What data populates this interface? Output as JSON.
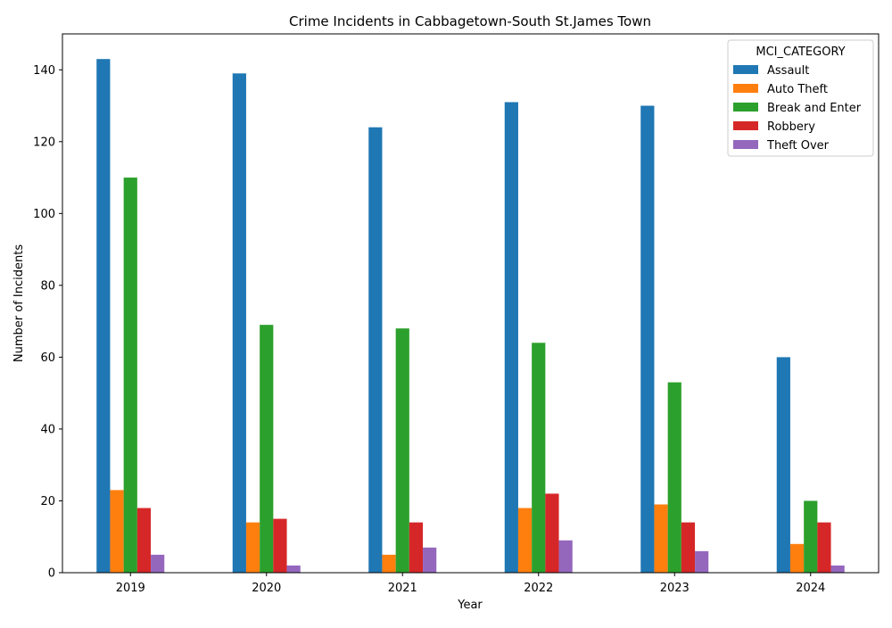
{
  "chart_data": {
    "type": "bar",
    "title": "Crime Incidents in Cabbagetown-South St.James Town",
    "xlabel": "Year",
    "ylabel": "Number of Incidents",
    "categories": [
      "2019",
      "2020",
      "2021",
      "2022",
      "2023",
      "2024"
    ],
    "ylim": [
      0,
      150
    ],
    "yticks": [
      0,
      20,
      40,
      60,
      80,
      100,
      120,
      140
    ],
    "legend_title": "MCI_CATEGORY",
    "legend_position": "top-right",
    "grid": false,
    "series": [
      {
        "name": "Assault",
        "color": "#1f77b4",
        "values": [
          143,
          139,
          124,
          131,
          130,
          60
        ]
      },
      {
        "name": "Auto Theft",
        "color": "#ff7f0e",
        "values": [
          23,
          14,
          5,
          18,
          19,
          8
        ]
      },
      {
        "name": "Break and Enter",
        "color": "#2ca02c",
        "values": [
          110,
          69,
          68,
          64,
          53,
          20
        ]
      },
      {
        "name": "Robbery",
        "color": "#d62728",
        "values": [
          18,
          15,
          14,
          22,
          14,
          14
        ]
      },
      {
        "name": "Theft Over",
        "color": "#9467bd",
        "values": [
          5,
          2,
          7,
          9,
          6,
          2
        ]
      }
    ]
  }
}
